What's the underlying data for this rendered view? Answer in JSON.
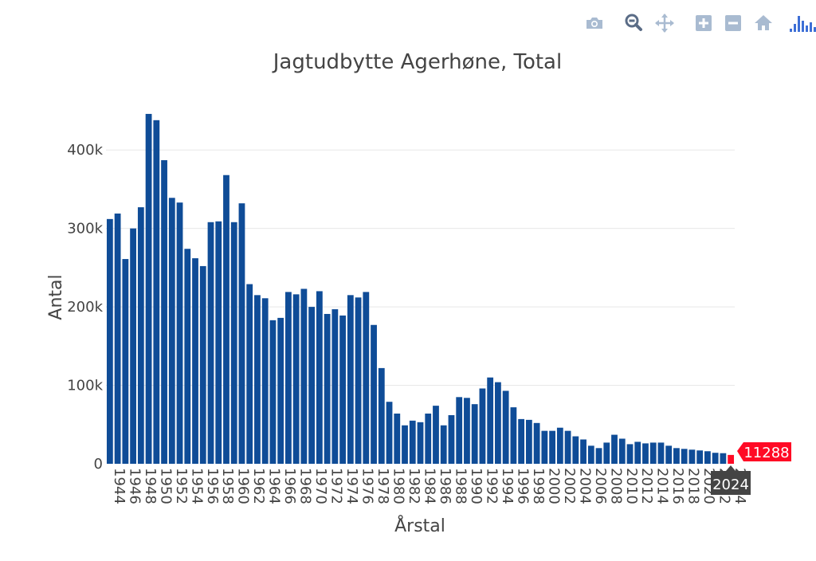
{
  "modebar": {
    "buttons": [
      {
        "name": "camera-icon",
        "title": "Download plot as a png"
      },
      {
        "name": "zoom-icon",
        "title": "Zoom"
      },
      {
        "name": "pan-icon",
        "title": "Pan"
      },
      {
        "name": "zoom-in-icon",
        "title": "Zoom in"
      },
      {
        "name": "zoom-out-icon",
        "title": "Zoom out"
      },
      {
        "name": "home-icon",
        "title": "Reset axes"
      },
      {
        "name": "plotly-logo-icon",
        "title": "Produced with Plotly"
      }
    ]
  },
  "colors": {
    "bar": "#0f4c97",
    "highlight": "#ff0a25",
    "grid": "#e8e8e8",
    "text": "#444444",
    "modebar_icon": "#a9bbd1",
    "modebar_active": "#5a6c86",
    "plotly_logo": "#3d6fd6"
  },
  "chart_data": {
    "type": "bar",
    "title": "Jagtudbytte Agerhøne, Total",
    "xlabel": "Årstal",
    "ylabel": "Antal",
    "ylim": [
      0,
      450000
    ],
    "yticks": [
      0,
      100000,
      200000,
      300000,
      400000
    ],
    "ytick_labels": [
      "0",
      "100k",
      "200k",
      "300k",
      "400k"
    ],
    "xtick_labels": [
      "1944",
      "1946",
      "1948",
      "1950",
      "1952",
      "1954",
      "1956",
      "1958",
      "1960",
      "1962",
      "1964",
      "1966",
      "1968",
      "1970",
      "1972",
      "1974",
      "1976",
      "1978",
      "1980",
      "1982",
      "1984",
      "1986",
      "1988",
      "1990",
      "1992",
      "1994",
      "1996",
      "1998",
      "2000",
      "2002",
      "2004",
      "2006",
      "2008",
      "2010",
      "2012",
      "2014",
      "2016",
      "2018",
      "2020",
      "2022",
      "2024"
    ],
    "categories": [
      1944,
      1945,
      1946,
      1947,
      1948,
      1949,
      1950,
      1951,
      1952,
      1953,
      1954,
      1955,
      1956,
      1957,
      1958,
      1959,
      1960,
      1961,
      1962,
      1963,
      1964,
      1965,
      1966,
      1967,
      1968,
      1969,
      1970,
      1971,
      1972,
      1973,
      1974,
      1975,
      1976,
      1977,
      1978,
      1979,
      1980,
      1981,
      1982,
      1983,
      1984,
      1985,
      1986,
      1987,
      1988,
      1989,
      1990,
      1991,
      1992,
      1993,
      1994,
      1995,
      1996,
      1997,
      1998,
      1999,
      2000,
      2001,
      2002,
      2003,
      2004,
      2005,
      2006,
      2007,
      2008,
      2009,
      2010,
      2011,
      2012,
      2013,
      2014,
      2015,
      2016,
      2017,
      2018,
      2019,
      2020,
      2021,
      2022,
      2023,
      2024
    ],
    "values": [
      312000,
      319000,
      261000,
      300000,
      327000,
      446000,
      438000,
      387000,
      339000,
      333000,
      274000,
      262000,
      252000,
      308000,
      309000,
      368000,
      308000,
      332000,
      229000,
      215000,
      211000,
      183000,
      186000,
      219000,
      216000,
      223000,
      200000,
      220000,
      191000,
      197000,
      189000,
      215000,
      212000,
      219000,
      177000,
      122000,
      79000,
      64000,
      49000,
      55000,
      53000,
      64000,
      74000,
      49000,
      62000,
      85000,
      84000,
      76000,
      96000,
      110000,
      104000,
      93000,
      72000,
      57000,
      56000,
      52000,
      42000,
      42000,
      46000,
      42000,
      35000,
      31000,
      23000,
      20000,
      27000,
      37000,
      32000,
      25000,
      28000,
      26000,
      27000,
      27000,
      23000,
      20000,
      19000,
      18000,
      17000,
      16000,
      14000,
      13500,
      11288
    ],
    "hover": {
      "x": "2024",
      "y": "11288"
    }
  }
}
